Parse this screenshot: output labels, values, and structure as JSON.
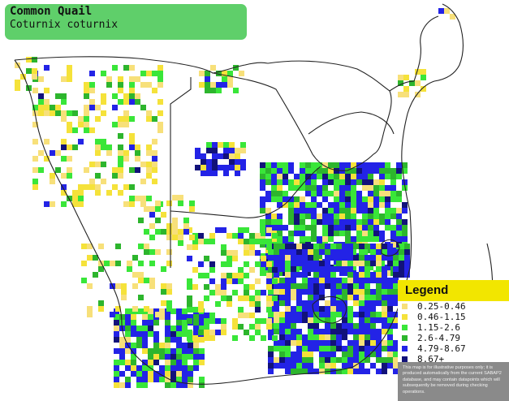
{
  "title": {
    "common_name": "Common Quail",
    "scientific_name": "Coturnix coturnix"
  },
  "legend": {
    "heading": "Legend",
    "items": [
      {
        "label": "0.25-0.46",
        "color": "#f7e07a"
      },
      {
        "label": "0.46-1.15",
        "color": "#f5e23a"
      },
      {
        "label": "1.15-2.6",
        "color": "#39e639"
      },
      {
        "label": "2.6-4.79",
        "color": "#2db52d"
      },
      {
        "label": "4.79-8.67",
        "color": "#2323e6"
      },
      {
        "label": "8.67+",
        "color": "#12127a"
      }
    ],
    "note": "This map is for illustrative purposes only; it is produced automatically from the current SABAP2 database, and may contain datapoints which will subsequently be removed during checking operations."
  },
  "colors": {
    "border": "#222222",
    "background": "#ffffff"
  }
}
